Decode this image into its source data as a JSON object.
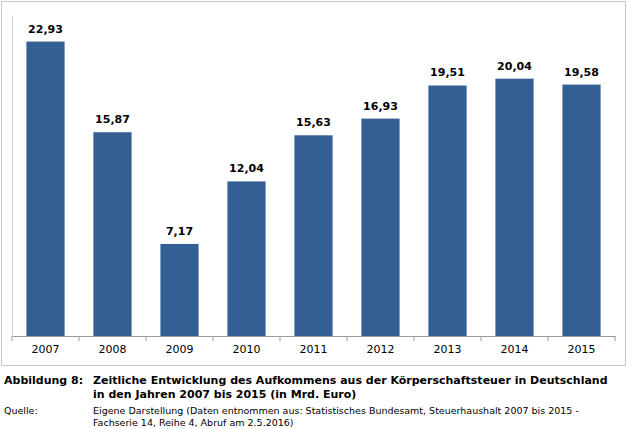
{
  "chart_data": {
    "type": "bar",
    "figure_label": "Abbildung 8:",
    "title": [
      "Zeitliche Entwicklung des Aufkommens aus der Körperschaftsteuer in Deutschland",
      "in den Jahren 2007 bis 2015 (in Mrd. Euro)"
    ],
    "source_label": "Quelle:",
    "source": [
      "Eigene Darstellung (Daten entnommen aus: Statistisches Bundesamt, Steuerhaushalt 2007 bis 2015 -",
      "Fachserie 14, Reihe 4, Abruf am 2.5.2016)"
    ],
    "categories": [
      "2007",
      "2008",
      "2009",
      "2010",
      "2011",
      "2012",
      "2013",
      "2014",
      "2015"
    ],
    "values": [
      22.93,
      15.87,
      7.17,
      12.04,
      15.63,
      16.93,
      19.51,
      20.04,
      19.58
    ],
    "value_labels": [
      "22,93",
      "15,87",
      "7,17",
      "12,04",
      "15,63",
      "16,93",
      "19,51",
      "20,04",
      "19,58"
    ],
    "color": "#335f95",
    "ylim": [
      0,
      25
    ],
    "grid": false,
    "data_labels": true,
    "tick_labels": "x"
  }
}
